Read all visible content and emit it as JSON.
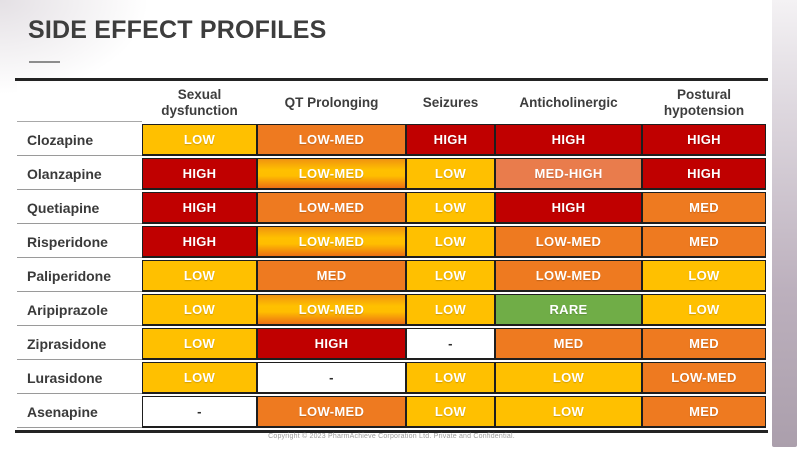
{
  "title": "SIDE EFFECT PROFILES",
  "footer": "Copyright © 2023 PharmAchieve Corporation Ltd. Private and Confidential.",
  "palette": {
    "low": "#FFC000",
    "med": "#EE7A20",
    "med_high": "#E97C4C",
    "high": "#C00000",
    "rare": "#70AD47",
    "heading_text": "#3D3D3D",
    "cell_text": "#FFFFFF",
    "right_band": "#AB9FAC"
  },
  "chart_data": {
    "type": "table",
    "title": "SIDE EFFECT PROFILES",
    "columns": [
      "Sexual dysfunction",
      "QT Prolonging",
      "Seizures",
      "Anticholinergic",
      "Postural hypotension"
    ],
    "rows": [
      {
        "drug": "Clozapine",
        "cells": [
          {
            "text": "LOW",
            "level": "low"
          },
          {
            "text": "LOW-MED",
            "level": "med"
          },
          {
            "text": "HIGH",
            "level": "high"
          },
          {
            "text": "HIGH",
            "level": "high"
          },
          {
            "text": "HIGH",
            "level": "high"
          }
        ]
      },
      {
        "drug": "Olanzapine",
        "cells": [
          {
            "text": "HIGH",
            "level": "high"
          },
          {
            "text": "LOW-MED",
            "level": "grad"
          },
          {
            "text": "LOW",
            "level": "low"
          },
          {
            "text": "MED-HIGH",
            "level": "med_high"
          },
          {
            "text": "HIGH",
            "level": "high"
          }
        ]
      },
      {
        "drug": "Quetiapine",
        "cells": [
          {
            "text": "HIGH",
            "level": "high"
          },
          {
            "text": "LOW-MED",
            "level": "med"
          },
          {
            "text": "LOW",
            "level": "low"
          },
          {
            "text": "HIGH",
            "level": "high"
          },
          {
            "text": "MED",
            "level": "med"
          }
        ]
      },
      {
        "drug": "Risperidone",
        "cells": [
          {
            "text": "HIGH",
            "level": "high"
          },
          {
            "text": "LOW-MED",
            "level": "grad"
          },
          {
            "text": "LOW",
            "level": "low"
          },
          {
            "text": "LOW-MED",
            "level": "med"
          },
          {
            "text": "MED",
            "level": "med"
          }
        ]
      },
      {
        "drug": "Paliperidone",
        "cells": [
          {
            "text": "LOW",
            "level": "low"
          },
          {
            "text": "MED",
            "level": "med"
          },
          {
            "text": "LOW",
            "level": "low"
          },
          {
            "text": "LOW-MED",
            "level": "med"
          },
          {
            "text": "LOW",
            "level": "low"
          }
        ]
      },
      {
        "drug": "Aripiprazole",
        "cells": [
          {
            "text": "LOW",
            "level": "low"
          },
          {
            "text": "LOW-MED",
            "level": "grad"
          },
          {
            "text": "LOW",
            "level": "low"
          },
          {
            "text": "RARE",
            "level": "rare"
          },
          {
            "text": "LOW",
            "level": "low"
          }
        ]
      },
      {
        "drug": "Ziprasidone",
        "cells": [
          {
            "text": "LOW",
            "level": "low"
          },
          {
            "text": "HIGH",
            "level": "high"
          },
          {
            "text": "-",
            "level": "none"
          },
          {
            "text": "MED",
            "level": "med"
          },
          {
            "text": "MED",
            "level": "med"
          }
        ]
      },
      {
        "drug": "Lurasidone",
        "cells": [
          {
            "text": "LOW",
            "level": "low"
          },
          {
            "text": "-",
            "level": "none"
          },
          {
            "text": "LOW",
            "level": "low"
          },
          {
            "text": "LOW",
            "level": "low"
          },
          {
            "text": "LOW-MED",
            "level": "med"
          }
        ]
      },
      {
        "drug": "Asenapine",
        "cells": [
          {
            "text": "-",
            "level": "none"
          },
          {
            "text": "LOW-MED",
            "level": "med"
          },
          {
            "text": "LOW",
            "level": "low"
          },
          {
            "text": "LOW",
            "level": "low"
          },
          {
            "text": "MED",
            "level": "med"
          }
        ]
      }
    ]
  }
}
